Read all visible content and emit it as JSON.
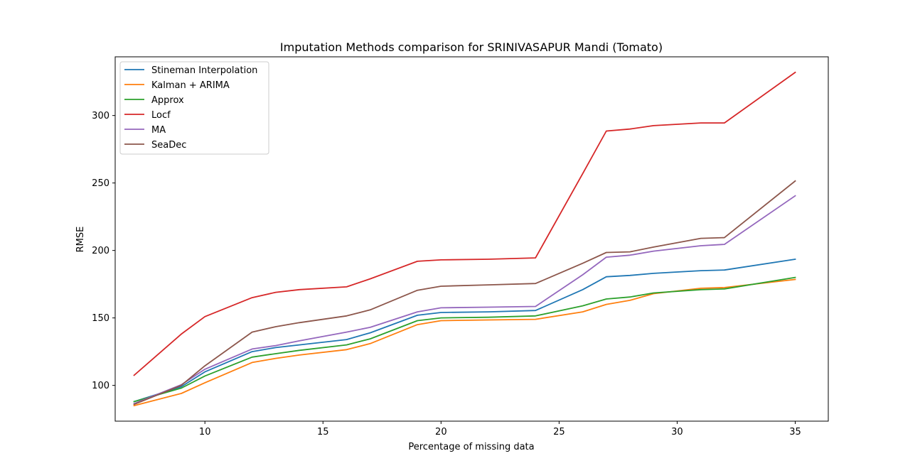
{
  "chart_data": {
    "type": "line",
    "title": "Imputation Methods comparison for SRINIVASAPUR Mandi (Tomato)",
    "xlabel": "Percentage of missing data",
    "ylabel": "RMSE",
    "xlim": [
      6.2,
      36.4
    ],
    "ylim": [
      73.5,
      343.5
    ],
    "xticks": [
      10,
      15,
      20,
      25,
      30,
      35
    ],
    "yticks": [
      100,
      150,
      200,
      250,
      300
    ],
    "grid": false,
    "legend_position": "top-left",
    "x": [
      7,
      9,
      10,
      12,
      13,
      14,
      16,
      17,
      19,
      20,
      22,
      24,
      26,
      27,
      28,
      29,
      31,
      32,
      35
    ],
    "series": [
      {
        "name": "Stineman Interpolation",
        "color": "#1f77b4",
        "values": [
          88,
          99,
          110,
          125,
          128,
          130,
          134,
          139,
          152,
          154,
          154.5,
          155.5,
          171,
          180.5,
          181.5,
          183,
          185,
          185.5,
          193.5
        ]
      },
      {
        "name": "Kalman + ARIMA",
        "color": "#ff7f0e",
        "values": [
          85,
          94,
          102,
          117,
          120,
          122.5,
          126.5,
          131,
          145,
          148,
          148.5,
          149,
          154.5,
          160,
          163,
          168,
          172,
          172.5,
          178.5
        ]
      },
      {
        "name": "Approx",
        "color": "#2ca02c",
        "values": [
          88,
          98,
          107,
          121,
          123.5,
          126,
          130,
          134.5,
          148,
          150,
          150.5,
          151.5,
          159,
          164,
          165.5,
          168.5,
          171,
          171.5,
          180
        ]
      },
      {
        "name": "Locf",
        "color": "#d62728",
        "values": [
          107.5,
          138,
          151,
          165,
          169,
          171,
          173,
          179,
          192,
          193,
          193.5,
          194.5,
          257,
          288.5,
          290,
          292.5,
          294.5,
          294.5,
          332
        ]
      },
      {
        "name": "MA",
        "color": "#9467bd",
        "values": [
          86.5,
          100.5,
          112,
          127,
          129.5,
          133,
          139.5,
          143,
          154.5,
          157.5,
          158,
          158.5,
          182,
          195,
          196.5,
          199.5,
          203.5,
          204.5,
          240.5
        ]
      },
      {
        "name": "SeaDec",
        "color": "#8c564b",
        "values": [
          86,
          100,
          114.5,
          139.5,
          143.5,
          146.5,
          151.5,
          156,
          170.5,
          173.5,
          174.5,
          175.5,
          190.5,
          198.5,
          199,
          202.5,
          209,
          209.5,
          251.5
        ]
      }
    ]
  }
}
